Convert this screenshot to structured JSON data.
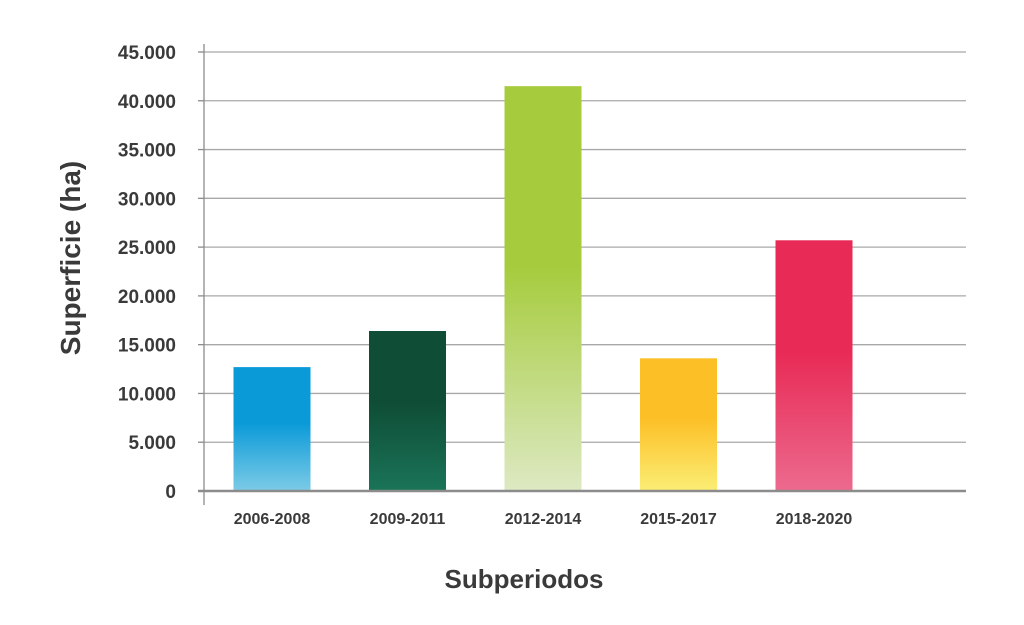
{
  "chart_data": {
    "type": "bar",
    "title": "",
    "xlabel": "Subperiodos",
    "ylabel": "Superficie (ha)",
    "categories": [
      "2006-2008",
      "2009-2011",
      "2012-2014",
      "2015-2017",
      "2018-2020"
    ],
    "values": [
      12700,
      16400,
      41500,
      13600,
      25700
    ],
    "ylim": [
      0,
      45000
    ],
    "yticks": [
      0,
      5000,
      10000,
      15000,
      20000,
      25000,
      30000,
      35000,
      40000,
      45000
    ],
    "ytick_labels": [
      "0",
      "5.000",
      "10.000",
      "15.000",
      "20.000",
      "25.000",
      "30.000",
      "35.000",
      "40.000",
      "45.000"
    ],
    "grid": true,
    "legend": "none",
    "bar_colors": [
      {
        "top": "#0a9ad8",
        "bottom": "#7ccbe6"
      },
      {
        "top": "#0f4d36",
        "bottom": "#1a7458"
      },
      {
        "top": "#a6cc3e",
        "bottom": "#dde9c3"
      },
      {
        "top": "#fcbf26",
        "bottom": "#fbee75"
      },
      {
        "top": "#e82b56",
        "bottom": "#ec6a8e"
      }
    ],
    "grid_color": "#a8a8a8",
    "text_color": "#3a3a3a"
  }
}
